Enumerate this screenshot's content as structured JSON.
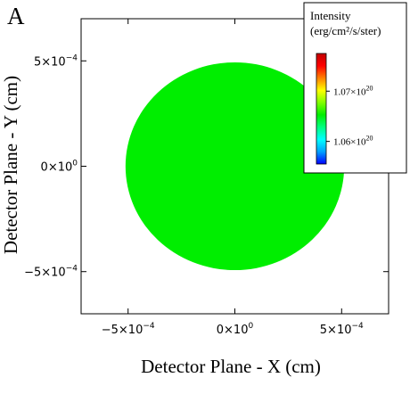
{
  "chart_data": {
    "type": "heatmap",
    "panel_label": "A",
    "xlabel": "Detector Plane - X (cm)",
    "ylabel": "Detector Plane - Y (cm)",
    "xlim": [
      -0.00072,
      0.00072
    ],
    "ylim": [
      -0.0007,
      0.0007
    ],
    "x_ticks": [
      {
        "value": -0.0005,
        "mantissa": "−5×10",
        "exp": "−4"
      },
      {
        "value": 0,
        "mantissa": "0×10",
        "exp": "0"
      },
      {
        "value": 0.0005,
        "mantissa": "5×10",
        "exp": "−4"
      }
    ],
    "y_ticks": [
      {
        "value": 0.0005,
        "mantissa": "5×10",
        "exp": "−4"
      },
      {
        "value": 0,
        "mantissa": "0×10",
        "exp": "0"
      },
      {
        "value": -0.0005,
        "mantissa": "−5×10",
        "exp": "−4"
      }
    ],
    "disk": {
      "center_x": 0,
      "center_y": 0,
      "radius_x": 0.000512,
      "radius_y": 0.000493,
      "intensity": 1.07e+20,
      "color": "#00ee00"
    },
    "colorbar": {
      "title_line1": "Intensity",
      "title_line2": "(erg/cm²/s/ster)",
      "range": [
        1.0555e+20,
        1.0775e+20
      ],
      "ticks": [
        {
          "value": 1.07e+20,
          "mantissa": "1.07×10",
          "exp": "20"
        },
        {
          "value": 1.06e+20,
          "mantissa": "1.06×10",
          "exp": "20"
        }
      ],
      "colormap": [
        "#0000ff",
        "#00a0ff",
        "#00ffff",
        "#00ff80",
        "#00ee00",
        "#80ff00",
        "#ffff00",
        "#ff8000",
        "#ff0000",
        "#c00000"
      ]
    }
  }
}
